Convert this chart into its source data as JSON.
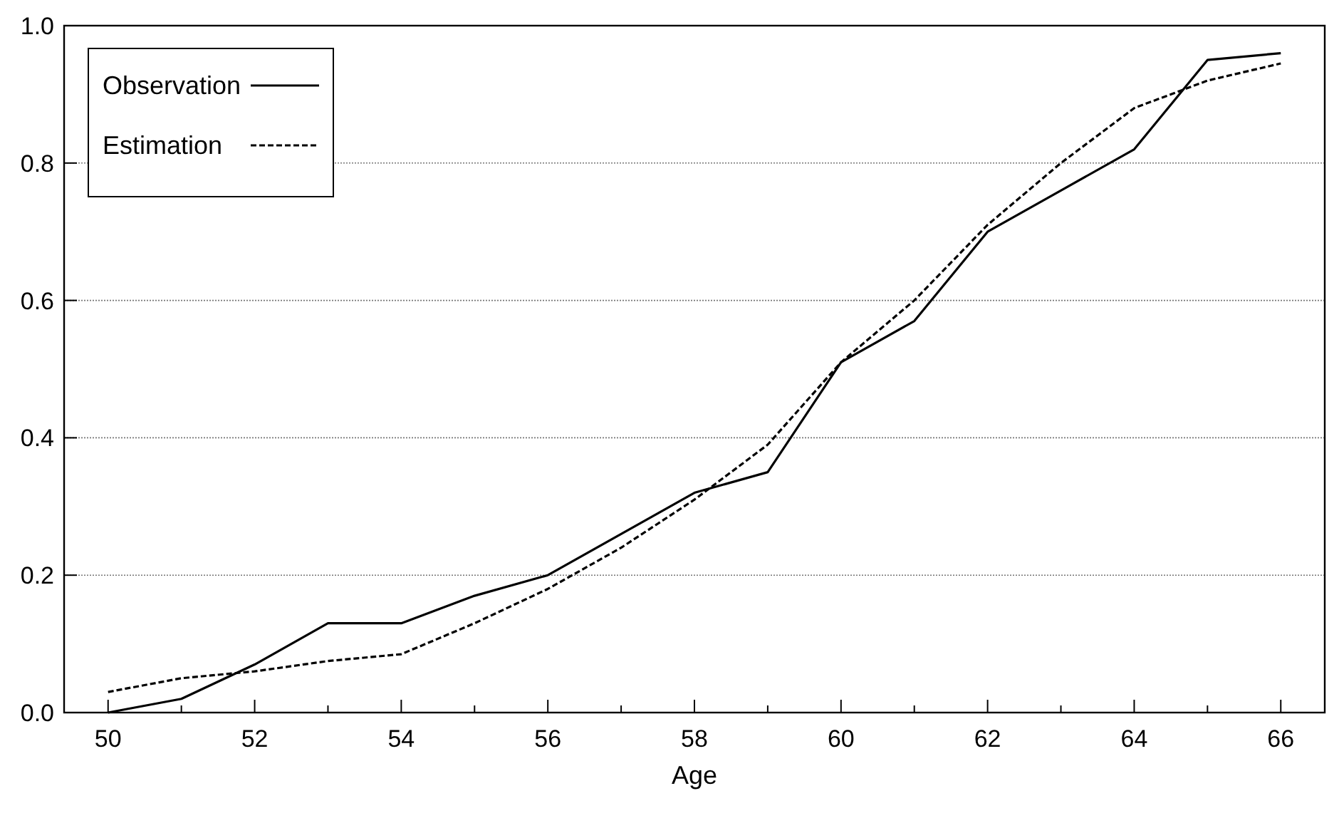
{
  "chart_data": {
    "type": "line",
    "xlabel": "Age",
    "x": [
      50,
      51,
      52,
      53,
      54,
      55,
      56,
      57,
      58,
      59,
      60,
      61,
      62,
      63,
      64,
      65,
      66
    ],
    "series": [
      {
        "name": "Observation",
        "color": "#000000",
        "line_style": "solid",
        "values": [
          0,
          0.02,
          0.07,
          0.13,
          0.13,
          0.17,
          0.2,
          0.26,
          0.32,
          0.35,
          0.51,
          0.57,
          0.7,
          0.76,
          0.82,
          0.95,
          0.96
        ]
      },
      {
        "name": "Estimation",
        "color": "#000000",
        "line_style": "dashed",
        "values": [
          0.03,
          0.05,
          0.06,
          0.075,
          0.085,
          0.13,
          0.18,
          0.24,
          0.31,
          0.39,
          0.51,
          0.6,
          0.71,
          0.8,
          0.88,
          0.92,
          0.945
        ]
      }
    ],
    "xlim": [
      49.4,
      66.6
    ],
    "ylim": [
      0,
      1
    ],
    "xticks": [
      50,
      {
        "value": 51,
        "label": null
      },
      52,
      {
        "value": 53,
        "label": null
      },
      54,
      {
        "value": 55,
        "label": null
      },
      56,
      {
        "value": 57,
        "label": null
      },
      58,
      {
        "value": 59,
        "label": null
      },
      60,
      {
        "value": 61,
        "label": null
      },
      62,
      {
        "value": 63,
        "label": null
      },
      64,
      {
        "value": 65,
        "label": null
      },
      66
    ],
    "yticks": [
      {
        "value": 0,
        "label": "0.0"
      },
      0.2,
      0.4,
      0.6,
      0.8,
      {
        "value": 1,
        "label": "1.0"
      }
    ],
    "grid": "y",
    "legend": "top left",
    "marker": "none"
  }
}
